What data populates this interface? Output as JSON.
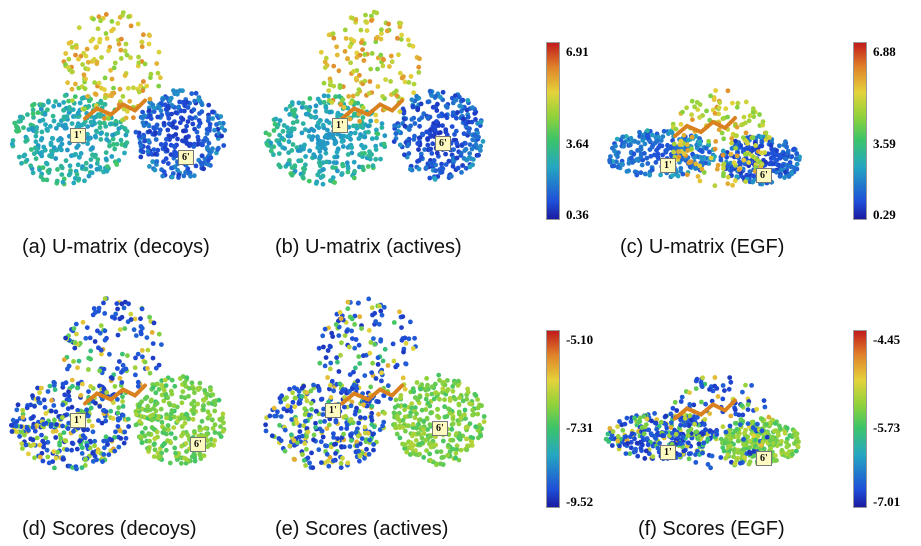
{
  "figure": {
    "panels": [
      {
        "id": "a",
        "caption": "(a) U-matrix (decoys)",
        "scheme": "umatrix"
      },
      {
        "id": "b",
        "caption": "(b) U-matrix (actives)",
        "scheme": "umatrix"
      },
      {
        "id": "c",
        "caption": "(c) U-matrix (EGF)",
        "scheme": "umatrix"
      },
      {
        "id": "d",
        "caption": "(d) Scores (decoys)",
        "scheme": "scores"
      },
      {
        "id": "e",
        "caption": "(e) Scores (actives)",
        "scheme": "scores"
      },
      {
        "id": "f",
        "caption": "(f) Scores (EGF)",
        "scheme": "scores"
      }
    ],
    "markers": {
      "one": "1'",
      "six": "6'"
    },
    "colorbars": [
      {
        "id": "cbar-1",
        "ticks": [
          "6.91",
          "3.64",
          "0.36"
        ]
      },
      {
        "id": "cbar-2",
        "ticks": [
          "6.88",
          "3.59",
          "0.29"
        ]
      },
      {
        "id": "cbar-3",
        "ticks": [
          "-5.10",
          "-7.31",
          "-9.52"
        ]
      },
      {
        "id": "cbar-4",
        "ticks": [
          "-4.45",
          "-5.73",
          "-7.01"
        ]
      }
    ],
    "colors": {
      "low": "#1a1aa0",
      "mid": "#3cc46a",
      "high": "#c21a1a",
      "label_bg": "#fffbc0"
    }
  }
}
